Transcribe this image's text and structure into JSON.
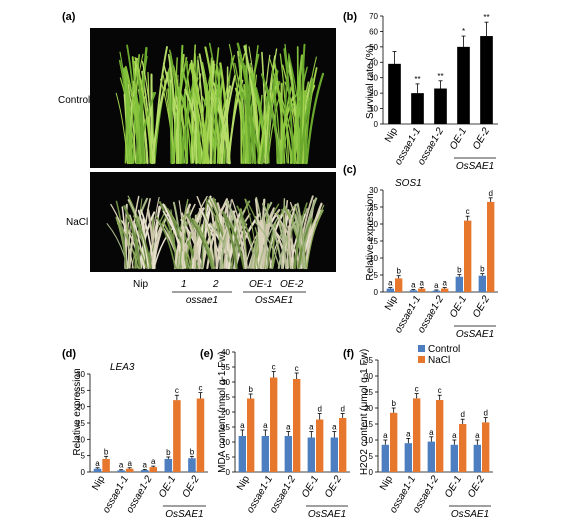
{
  "figure": {
    "panel_a": {
      "label": "(a)",
      "row_labels": [
        "Control",
        "NaCl"
      ],
      "lane_labels": [
        "Nip",
        "1",
        "2",
        "OE-1",
        "OE-2"
      ],
      "group_labels": [
        "ossae1",
        "OsSAE1"
      ]
    },
    "colors": {
      "control": "#4d7fc0",
      "nacl": "#e8772e",
      "single": "#000000"
    }
  },
  "chart_data": [
    {
      "panel": "(b)",
      "type": "bar",
      "ylabel": "Survival rate (%)",
      "ylim": [
        0,
        70
      ],
      "yticks": [
        "0",
        "10",
        "20",
        "30",
        "40",
        "50",
        "60",
        "70"
      ],
      "categories": [
        "Nip",
        "ossae1-1",
        "ossae1-2",
        "OE-1",
        "OE-2"
      ],
      "group_label": "OsSAE1",
      "values": [
        39,
        20,
        23,
        50,
        57
      ],
      "errors": [
        8,
        6,
        5,
        7,
        9
      ],
      "marks": [
        "",
        "**",
        "**",
        "*",
        "**"
      ]
    },
    {
      "panel": "(c)",
      "type": "bar",
      "title": "SOS1",
      "ylabel": "Relative expression",
      "ylim": [
        0,
        30
      ],
      "yticks": [
        "0",
        "5",
        "10",
        "15",
        "20",
        "25",
        "30"
      ],
      "categories": [
        "Nip",
        "ossae1-1",
        "ossae1-2",
        "OE-1",
        "OE-2"
      ],
      "group_label": "OsSAE1",
      "series": [
        {
          "values": [
            1.0,
            0.5,
            0.4,
            4.5,
            4.8
          ],
          "errors": [
            0.3,
            0.2,
            0.2,
            0.6,
            0.6
          ],
          "letters": [
            "a",
            "a",
            "a",
            "b",
            "b"
          ]
        },
        {
          "values": [
            4.0,
            1.0,
            1.0,
            21.0,
            26.5
          ],
          "errors": [
            0.8,
            0.3,
            0.3,
            1.3,
            1.2
          ],
          "letters": [
            "b",
            "a",
            "a",
            "c",
            "d"
          ]
        }
      ]
    },
    {
      "panel": "(d)",
      "type": "bar",
      "title": "LEA3",
      "ylabel": "Relative expression",
      "ylim": [
        0,
        30
      ],
      "yticks": [
        "0",
        "5",
        "10",
        "15",
        "20",
        "25",
        "30"
      ],
      "categories": [
        "Nip",
        "ossae1-1",
        "ossae1-2",
        "OE-1",
        "OE-2"
      ],
      "group_label": "OsSAE1",
      "series": [
        {
          "values": [
            1.0,
            0.5,
            0.6,
            4.0,
            4.2
          ],
          "errors": [
            0.3,
            0.2,
            0.2,
            0.6,
            0.6
          ],
          "letters": [
            "a",
            "a",
            "a",
            "b",
            "b"
          ]
        },
        {
          "values": [
            4.0,
            1.0,
            1.5,
            22.0,
            22.5
          ],
          "errors": [
            0.8,
            0.3,
            0.3,
            1.5,
            1.8
          ],
          "letters": [
            "b",
            "a",
            "a",
            "c",
            "c"
          ]
        }
      ]
    },
    {
      "panel": "(e)",
      "type": "bar",
      "ylabel": "MDA content (nmol g-1 Fw)",
      "ylim": [
        0,
        40
      ],
      "yticks": [
        "0",
        "5",
        "10",
        "15",
        "20",
        "25",
        "30",
        "35",
        "40"
      ],
      "categories": [
        "Nip",
        "ossae1-1",
        "ossae1-2",
        "OE-1",
        "OE-2"
      ],
      "group_label": "OsSAE1",
      "series": [
        {
          "name": "Control",
          "values": [
            12,
            12,
            12,
            11.5,
            11.5
          ],
          "errors": [
            2,
            2,
            1.5,
            2,
            2
          ],
          "letters": [
            "a",
            "a",
            "a",
            "a",
            "a"
          ]
        },
        {
          "name": "NaCl",
          "values": [
            24.5,
            31.5,
            31.0,
            17.5,
            18.0
          ],
          "errors": [
            1.5,
            2.0,
            2.0,
            2.0,
            1.5
          ],
          "letters": [
            "b",
            "c",
            "c",
            "d",
            "d"
          ]
        }
      ],
      "legend": "top-right"
    },
    {
      "panel": "(f)",
      "type": "bar",
      "ylabel": "H2O2 content (μmol g-1 Fw)",
      "ylim": [
        0,
        35
      ],
      "yticks": [
        "0",
        "5",
        "10",
        "15",
        "20",
        "25",
        "30",
        "35"
      ],
      "categories": [
        "Nip",
        "ossae1-1",
        "ossae1-2",
        "OE-1",
        "OE-2"
      ],
      "group_label": "OsSAE1",
      "series": [
        {
          "name": "Control",
          "values": [
            8.5,
            9.0,
            9.5,
            8.5,
            8.5
          ],
          "errors": [
            1.5,
            1.5,
            1.5,
            1.5,
            1.5
          ],
          "letters": [
            "a",
            "a",
            "a",
            "a",
            "a"
          ]
        },
        {
          "name": "NaCl",
          "values": [
            18.5,
            23.0,
            22.5,
            15.0,
            15.5
          ],
          "errors": [
            1.5,
            1.5,
            1.5,
            1.5,
            1.5
          ],
          "letters": [
            "b",
            "c",
            "c",
            "d",
            "d"
          ]
        }
      ],
      "legend": "top-right"
    }
  ]
}
